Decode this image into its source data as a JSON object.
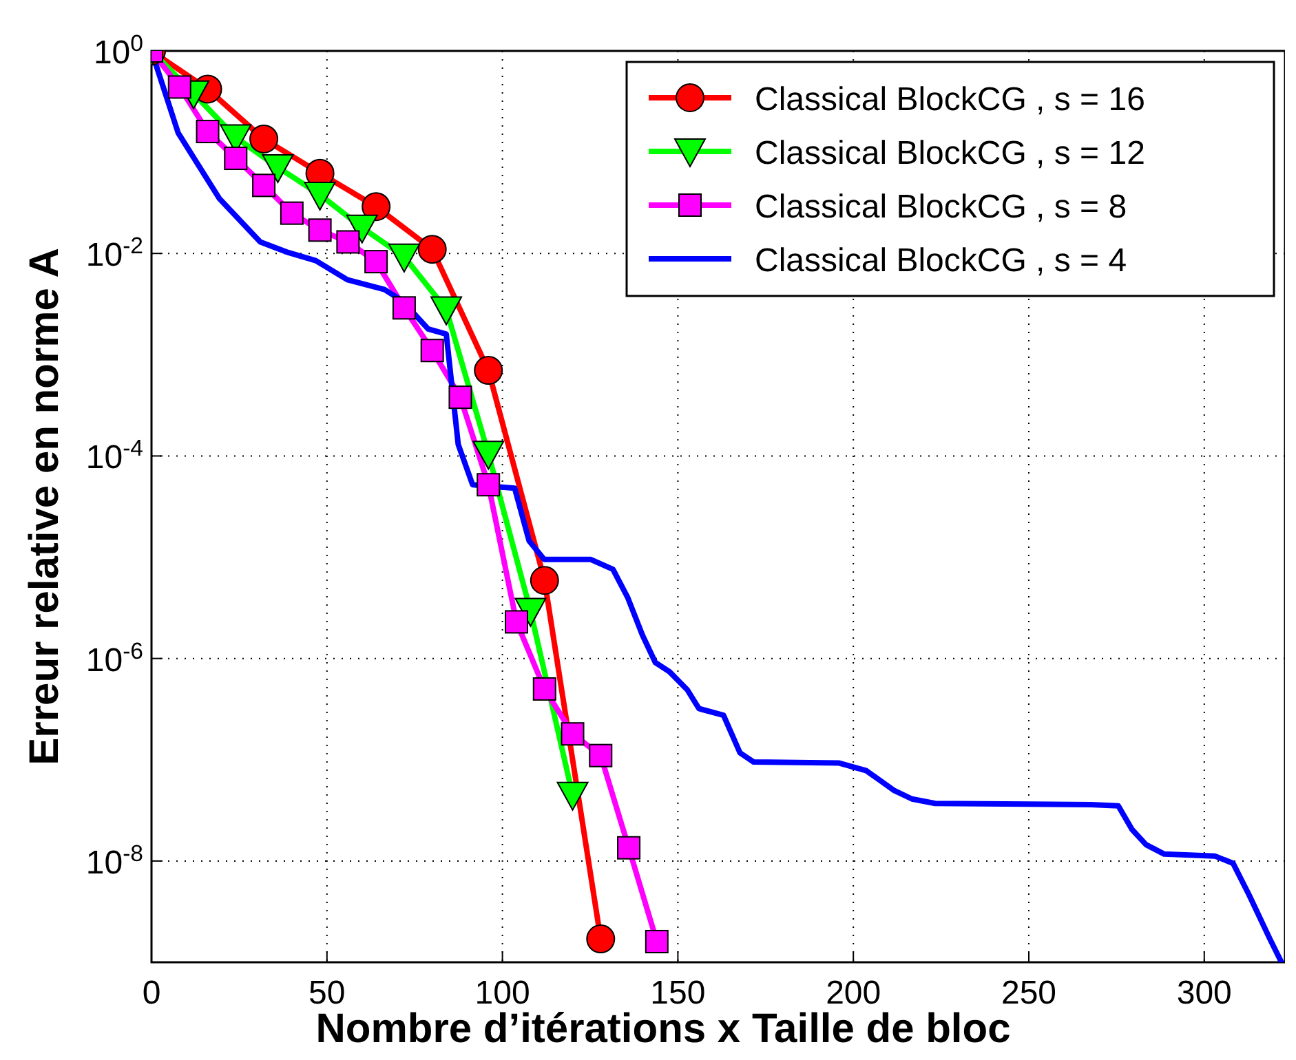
{
  "chart_data": {
    "type": "line",
    "xlabel": "Nombre d’itérations  x  Taille de bloc",
    "ylabel": "Erreur relative en norme A",
    "log": "y",
    "grid": true,
    "legend": "top right",
    "line_style": "solid",
    "xlim": [
      0,
      323
    ],
    "xticks": [
      0,
      50,
      100,
      150,
      200,
      250,
      300
    ],
    "ylim": [
      1e-09,
      1
    ],
    "yticks": [
      {
        "value": 1,
        "label": "10$^{0}$"
      },
      {
        "value": 0.01,
        "label": "10$^{-2}$"
      },
      {
        "value": 0.0001,
        "label": "10$^{-4}$"
      },
      {
        "value": 1e-06,
        "label": "10$^{-6}$"
      },
      {
        "value": 1e-08,
        "label": "10$^{-8}$"
      }
    ],
    "series": [
      {
        "name": "Classical BlockCG , s = 16",
        "color": "#ff0000",
        "marker": "circle",
        "x": [
          0,
          16,
          32,
          48,
          64,
          80,
          96,
          112,
          128
        ],
        "values": [
          1,
          0.42,
          0.135,
          0.062,
          0.029,
          0.011,
          0.0007,
          5.9e-06,
          1.7e-09
        ]
      },
      {
        "name": "Classical BlockCG , s = 12",
        "color": "#00ff00",
        "marker": "triangle",
        "x": [
          0,
          12,
          24,
          36,
          48,
          60,
          72,
          84,
          96,
          108,
          120
        ],
        "values": [
          1,
          0.38,
          0.14,
          0.071,
          0.038,
          0.018,
          0.0093,
          0.0028,
          0.000105,
          2.95e-06,
          4.5e-08
        ]
      },
      {
        "name": "Classical BlockCG , s = 8",
        "color": "#ff00ff",
        "marker": "square",
        "x": [
          0,
          8,
          16,
          24,
          32,
          40,
          48,
          56,
          64,
          72,
          80,
          88,
          96,
          104,
          112,
          120,
          128,
          136,
          144
        ],
        "values": [
          1,
          0.44,
          0.16,
          0.087,
          0.047,
          0.025,
          0.017,
          0.013,
          0.0083,
          0.0029,
          0.0011,
          0.00038,
          5.2e-05,
          2.3e-06,
          5e-07,
          1.8e-07,
          1.1e-07,
          1.35e-08,
          1.6e-09
        ]
      },
      {
        "name": "Classical BlockCG , s = 4",
        "color": "#0000ff",
        "marker": "none",
        "x": [
          0,
          7.6,
          19.3,
          31,
          39,
          46.8,
          55.8,
          66.4,
          71.5,
          78.8,
          84,
          87.4,
          91.5,
          103.5,
          107.6,
          111.9,
          125.2,
          131.5,
          135.7,
          139.9,
          143.6,
          147.6,
          152.7,
          156,
          163,
          167.7,
          171.6,
          195.8,
          203.7,
          211.5,
          216.7,
          223.3,
          267.7,
          275.5,
          279.4,
          283.4,
          288.6,
          303,
          308.2,
          312.8,
          318.7,
          322
        ],
        "values": [
          1,
          0.155,
          0.035,
          0.013,
          0.0102,
          0.0085,
          0.0055,
          0.0044,
          0.0034,
          0.0018,
          0.0016,
          0.00013,
          5.2e-05,
          4.8e-05,
          1.45e-05,
          9.5e-06,
          9.5e-06,
          7.6e-06,
          4e-06,
          1.7e-06,
          9.1e-07,
          7.4e-07,
          4.9e-07,
          3.2e-07,
          2.75e-07,
          1.17e-07,
          9.5e-08,
          9.3e-08,
          7.8e-08,
          5e-08,
          4.1e-08,
          3.7e-08,
          3.6e-08,
          3.5e-08,
          2.05e-08,
          1.45e-08,
          1.17e-08,
          1.12e-08,
          9.5e-09,
          4.6e-09,
          1.7e-09,
          1e-09
        ]
      }
    ]
  }
}
